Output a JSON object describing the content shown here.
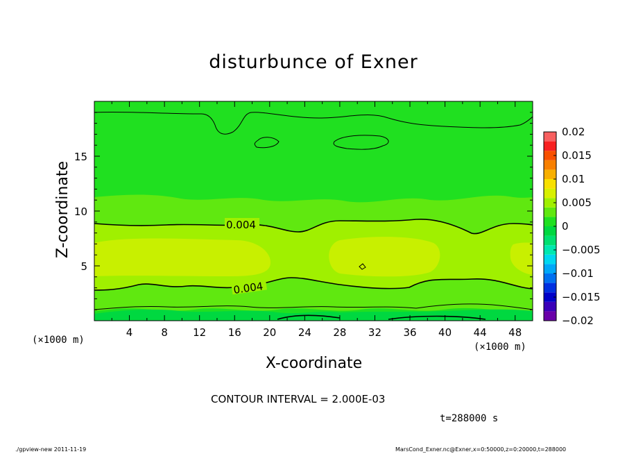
{
  "figure": {
    "title": "disturbunce of Exner",
    "xlabel": "X-coordinate",
    "ylabel": "Z-coordinate",
    "x_unit": "(×1000 m)",
    "x_unit_right": "(×1000 m)",
    "contour_interval": "CONTOUR INTERVAL = 2.000E-03",
    "time": "t=288000 s",
    "footer_left": "./gpview-new   2011-11-19",
    "footer_right": "MarsCond_Exner.nc@Exner,x=0:50000,z=0:20000,t=288000"
  },
  "chart_data": {
    "type": "heatmap",
    "title": "disturbunce of Exner",
    "xlabel": "X-coordinate",
    "ylabel": "Z-coordinate",
    "x_unit": "×1000 m",
    "xlim": [
      0,
      50
    ],
    "ylim": [
      0,
      20
    ],
    "x_ticks": [
      4,
      8,
      12,
      16,
      20,
      24,
      28,
      32,
      36,
      40,
      44,
      48
    ],
    "y_ticks": [
      5,
      10,
      15
    ],
    "colorbar": {
      "ticks": [
        0.02,
        0.015,
        0.01,
        0.005,
        0,
        -0.005,
        -0.01,
        -0.015,
        -0.02
      ],
      "tick_labels": [
        "0.02",
        "0.015",
        "0.01",
        "0.005",
        "0",
        "−0.005",
        "−0.01",
        "−0.015",
        "−0.02"
      ],
      "levels": [
        -0.02,
        -0.018,
        -0.016,
        -0.014,
        -0.012,
        -0.01,
        -0.008,
        -0.006,
        -0.004,
        -0.002,
        0,
        0.002,
        0.004,
        0.006,
        0.008,
        0.01,
        0.012,
        0.014,
        0.016,
        0.018,
        0.02
      ],
      "colors": [
        "#6a00a8",
        "#3a00b8",
        "#0000c8",
        "#0030e0",
        "#0070f0",
        "#00a8f8",
        "#00d8f0",
        "#00e8b0",
        "#00e070",
        "#00d840",
        "#20e020",
        "#60e810",
        "#a0f000",
        "#d8f000",
        "#f8e000",
        "#f8b000",
        "#f88000",
        "#f85000",
        "#f82020",
        "#f86060"
      ]
    },
    "contour_labels": [
      {
        "text": "0.004",
        "value": 0.004
      },
      {
        "text": "0.004",
        "value": 0.004
      }
    ],
    "contour_interval": 0.002,
    "time_s": 288000
  },
  "colors": {
    "background": "#ffffff",
    "field_low": "#20e020",
    "field_mid": "#60e810",
    "field_high": "#a0f000"
  }
}
